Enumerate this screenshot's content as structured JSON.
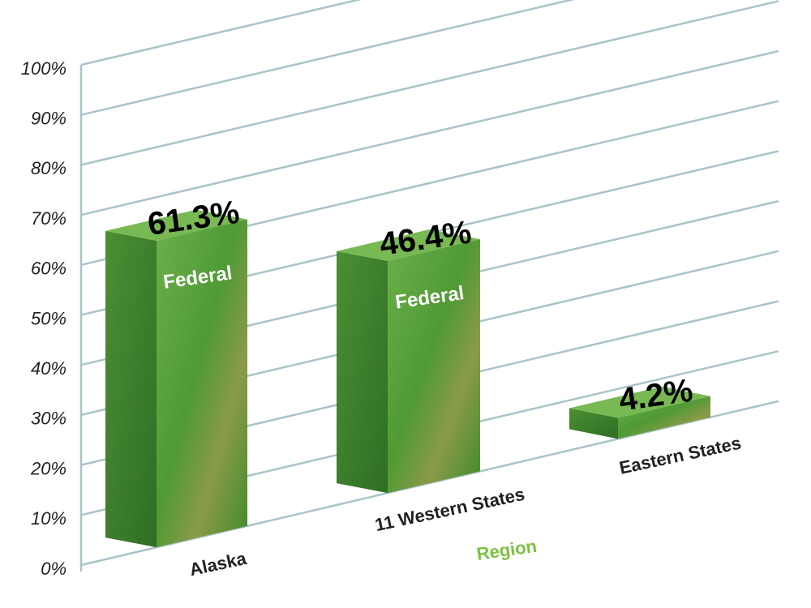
{
  "chart_data": {
    "type": "bar3d",
    "categories": [
      "Alaska",
      "11 Western States",
      "Eastern States"
    ],
    "values": [
      61.3,
      46.4,
      4.2
    ],
    "value_labels": [
      "61.3%",
      "46.4%",
      "4.2%"
    ],
    "annotations": [
      "Federal",
      "Federal"
    ],
    "x_label": "Region",
    "ylim": [
      0,
      100
    ],
    "yticks": [
      {
        "value": 0,
        "label": "0%"
      },
      {
        "value": 10,
        "label": "10%"
      },
      {
        "value": 20,
        "label": "20%"
      },
      {
        "value": 30,
        "label": "30%"
      },
      {
        "value": 40,
        "label": "40%"
      },
      {
        "value": 50,
        "label": "50%"
      },
      {
        "value": 60,
        "label": "60%"
      },
      {
        "value": 70,
        "label": "70%"
      },
      {
        "value": 80,
        "label": "80%"
      },
      {
        "value": 90,
        "label": "90%"
      },
      {
        "value": 100,
        "label": "100%"
      }
    ],
    "grid": true,
    "color": "#4f9a35"
  }
}
